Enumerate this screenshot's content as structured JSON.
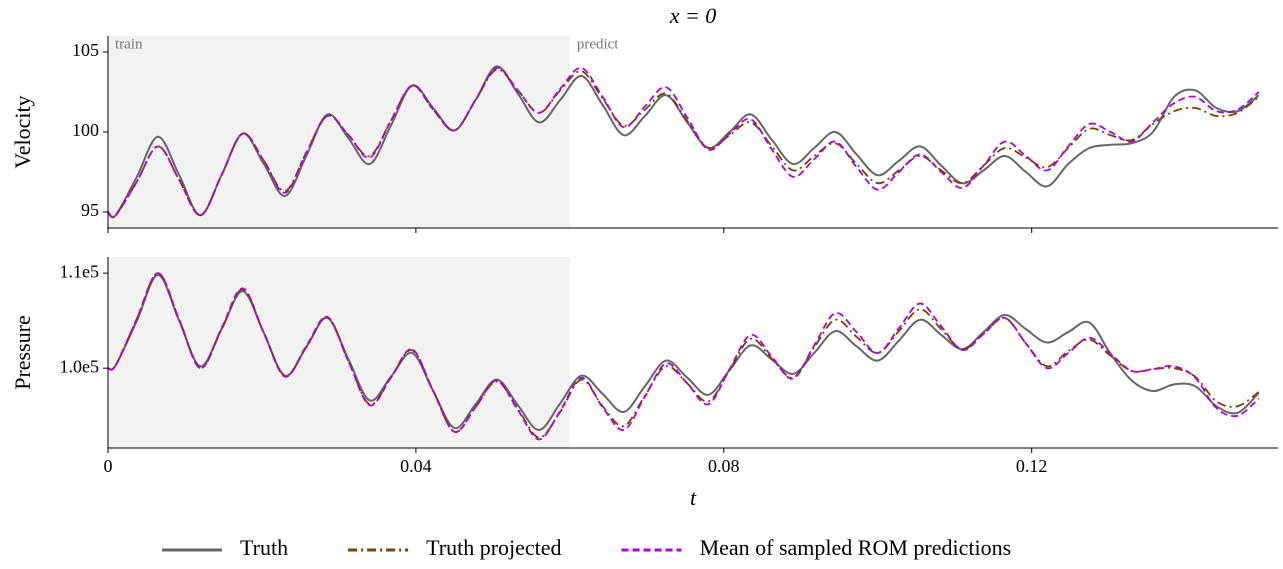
{
  "chart_data": [
    {
      "type": "line",
      "title": "x = 0",
      "ylabel": "Velocity",
      "xlim": [
        0,
        0.152
      ],
      "xticks": [
        0,
        0.04,
        0.08,
        0.12
      ],
      "ylim": [
        94,
        106
      ],
      "yticks": [
        95,
        100,
        105
      ],
      "shade": [
        0,
        0.06
      ],
      "annotations": [
        {
          "text": "train",
          "x": 0
        },
        {
          "text": "predict",
          "x": 0.06
        }
      ],
      "x": [
        0,
        0.001,
        0.00375,
        0.0065,
        0.00925,
        0.012,
        0.01475,
        0.0175,
        0.02025,
        0.023,
        0.02575,
        0.0285,
        0.03125,
        0.034,
        0.03675,
        0.0395,
        0.04225,
        0.045,
        0.04775,
        0.0505,
        0.05325,
        0.056,
        0.05875,
        0.0615,
        0.06425,
        0.067,
        0.06975,
        0.0725,
        0.07525,
        0.078,
        0.08075,
        0.0835,
        0.08625,
        0.089,
        0.09175,
        0.0945,
        0.09725,
        0.1,
        0.10275,
        0.1055,
        0.10825,
        0.111,
        0.11375,
        0.1165,
        0.11925,
        0.122,
        0.12475,
        0.1275,
        0.13025,
        0.133,
        0.13575,
        0.1385,
        0.14125,
        0.144,
        0.14675,
        0.1495
      ],
      "series": [
        {
          "name": "Truth",
          "color": "#666666",
          "dash": "solid",
          "values": [
            95.0,
            94.8,
            97.2,
            99.7,
            97.3,
            94.8,
            97.3,
            99.9,
            98.0,
            96.0,
            98.5,
            101.1,
            99.6,
            98.0,
            100.4,
            102.9,
            101.5,
            100.1,
            102.0,
            104.1,
            102.4,
            100.6,
            102.0,
            103.5,
            101.7,
            99.8,
            101.0,
            102.3,
            100.6,
            99.0,
            100.0,
            101.1,
            99.5,
            98.0,
            99.0,
            100.0,
            98.6,
            97.3,
            98.2,
            99.1,
            97.9,
            96.8,
            97.6,
            98.5,
            97.5,
            96.6,
            98.0,
            99.0,
            99.2,
            99.3,
            100.0,
            102.2,
            102.6,
            101.5,
            101.3,
            102.3
          ]
        },
        {
          "name": "Truth projected",
          "color": "#7f3f00",
          "dash": "dashdot",
          "values": [
            95.0,
            94.8,
            96.9,
            99.1,
            97.0,
            94.8,
            97.3,
            99.9,
            98.2,
            96.3,
            98.7,
            101.0,
            99.8,
            98.5,
            100.7,
            102.9,
            101.4,
            100.1,
            102.0,
            103.9,
            102.6,
            101.2,
            102.6,
            103.8,
            102.1,
            100.4,
            101.4,
            102.4,
            100.7,
            99.0,
            99.8,
            100.6,
            99.1,
            97.6,
            98.5,
            99.3,
            98.0,
            96.8,
            97.6,
            98.5,
            97.6,
            96.8,
            97.9,
            99.0,
            98.4,
            97.8,
            99.0,
            100.2,
            99.8,
            99.5,
            100.5,
            101.3,
            101.5,
            101.0,
            101.2,
            102.2
          ]
        },
        {
          "name": "Mean of sampled ROM predictions",
          "color": "#b000dd",
          "dash": "dashed",
          "values": [
            95.0,
            94.8,
            96.9,
            99.1,
            97.0,
            94.8,
            97.3,
            99.9,
            98.2,
            96.2,
            98.7,
            101.0,
            99.8,
            98.4,
            100.7,
            102.9,
            101.4,
            100.1,
            102.0,
            104.0,
            102.6,
            101.2,
            102.7,
            104.0,
            102.2,
            100.3,
            101.6,
            102.8,
            100.9,
            98.9,
            99.9,
            100.8,
            98.9,
            97.2,
            98.3,
            99.4,
            97.8,
            96.4,
            97.5,
            98.6,
            97.5,
            96.5,
            97.9,
            99.4,
            98.5,
            97.6,
            99.1,
            100.5,
            100.0,
            99.4,
            100.6,
            101.8,
            102.2,
            101.3,
            101.4,
            102.5
          ]
        }
      ]
    },
    {
      "type": "line",
      "ylabel": "Pressure",
      "xlabel": "t",
      "xlim": [
        0,
        0.152
      ],
      "xticks": [
        0,
        0.04,
        0.08,
        0.12
      ],
      "ylim": [
        91600,
        111700
      ],
      "yticks": [
        {
          "value": 100000,
          "label": "1.0e5"
        },
        {
          "value": 110000,
          "label": "1.1e5"
        }
      ],
      "shade": [
        0,
        0.06
      ],
      "x": [
        0,
        0.001,
        0.00375,
        0.0065,
        0.00925,
        0.012,
        0.01475,
        0.0175,
        0.02025,
        0.023,
        0.02575,
        0.0285,
        0.03125,
        0.034,
        0.03675,
        0.0395,
        0.04225,
        0.045,
        0.04775,
        0.0505,
        0.05325,
        0.056,
        0.05875,
        0.0615,
        0.06425,
        0.067,
        0.06975,
        0.0725,
        0.07525,
        0.078,
        0.08075,
        0.0835,
        0.08625,
        0.089,
        0.09175,
        0.0945,
        0.09725,
        0.1,
        0.10275,
        0.1055,
        0.10825,
        0.111,
        0.11375,
        0.1165,
        0.11925,
        0.122,
        0.12475,
        0.1275,
        0.13025,
        0.133,
        0.13575,
        0.1385,
        0.14125,
        0.144,
        0.14675,
        0.1495
      ],
      "series": [
        {
          "color": "#666666",
          "dash": "solid",
          "values": [
            100000,
            100300,
            105000,
            109800,
            105000,
            100200,
            104100,
            108100,
            103700,
            99200,
            102200,
            105300,
            100900,
            96600,
            99100,
            101600,
            97600,
            93700,
            96200,
            98800,
            96100,
            93500,
            96300,
            99200,
            97300,
            95400,
            98100,
            100800,
            99000,
            97200,
            99800,
            102400,
            100900,
            99400,
            101600,
            103900,
            102300,
            100800,
            102900,
            105100,
            103500,
            102000,
            103800,
            105600,
            104100,
            102700,
            103800,
            104800,
            101500,
            98700,
            97600,
            98300,
            98100,
            96000,
            95300,
            97400
          ]
        },
        {
          "color": "#7f3f00",
          "dash": "dashdot",
          "values": [
            100000,
            100300,
            105200,
            110000,
            105100,
            100000,
            104100,
            108300,
            103700,
            99200,
            102200,
            105300,
            100700,
            96200,
            99000,
            101900,
            97600,
            93300,
            95900,
            98600,
            95700,
            92700,
            95400,
            98800,
            96000,
            93900,
            97100,
            100200,
            98400,
            96500,
            99800,
            103100,
            101000,
            99000,
            102200,
            105100,
            103300,
            101600,
            103900,
            106200,
            104100,
            102000,
            103600,
            105300,
            102600,
            100200,
            101800,
            103000,
            101300,
            99700,
            99900,
            100000,
            99100,
            96500,
            96000,
            97500
          ]
        },
        {
          "color": "#b000dd",
          "dash": "dashed",
          "values": [
            100000,
            100300,
            105200,
            110000,
            105100,
            100000,
            104200,
            108400,
            103700,
            99100,
            102300,
            105400,
            100700,
            96100,
            99000,
            102000,
            97600,
            93300,
            95900,
            98700,
            95600,
            92500,
            95500,
            99000,
            95900,
            93500,
            97000,
            100500,
            98400,
            96200,
            99900,
            103500,
            101200,
            98900,
            102400,
            105800,
            103800,
            101600,
            104200,
            106800,
            104400,
            101900,
            103600,
            105300,
            102600,
            100000,
            101600,
            103200,
            101500,
            99700,
            99900,
            100200,
            99000,
            95800,
            95000,
            96800
          ]
        }
      ]
    }
  ]
}
